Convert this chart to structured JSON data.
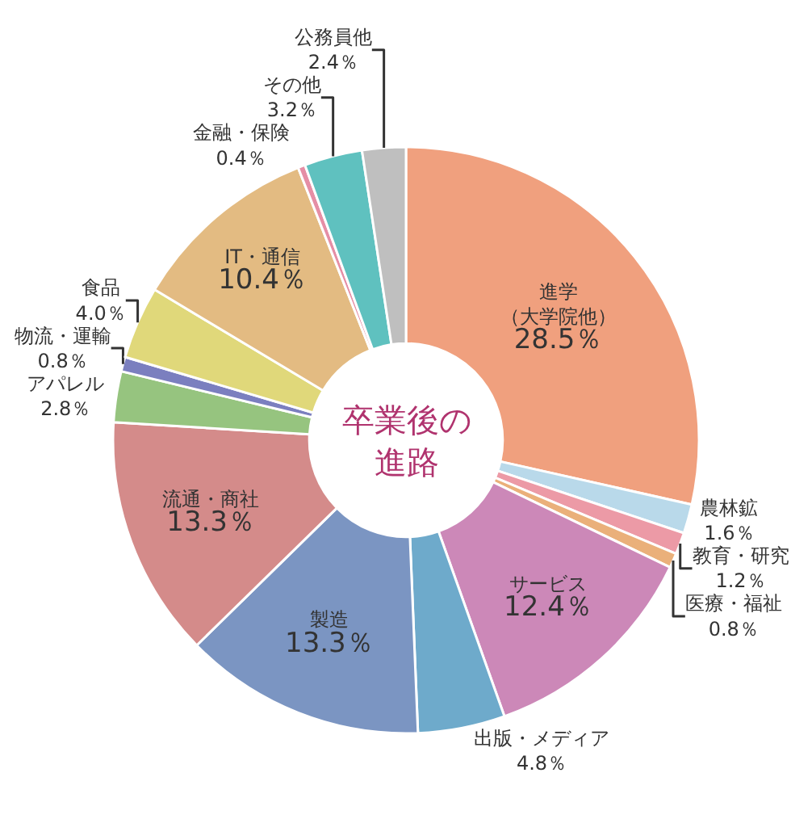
{
  "chart_data": {
    "type": "donut",
    "title": "卒業後の進路",
    "categories": [
      "進学（大学院他）",
      "農林鉱",
      "教育・研究",
      "医療・福祉",
      "サービス",
      "出版・メディア",
      "製造",
      "流通・商社",
      "アパレル",
      "物流・運輸",
      "食品",
      "IT・通信",
      "金融・保険",
      "その他",
      "公務員他"
    ],
    "values": [
      28.5,
      1.6,
      1.2,
      0.8,
      12.4,
      4.8,
      13.3,
      13.3,
      2.8,
      0.8,
      4.0,
      10.4,
      0.4,
      3.2,
      2.4
    ],
    "value_labels": [
      "28.5％",
      "1.6％",
      "1.2％",
      "0.8％",
      "12.4％",
      "4.8％",
      "13.3％",
      "13.3％",
      "2.8％",
      "0.8％",
      "4.0％",
      "10.4％",
      "0.4％",
      "3.2％",
      "2.4％"
    ],
    "colors": [
      "#f0a07e",
      "#b9d9ea",
      "#ec9aa6",
      "#eab07a",
      "#cc88b8",
      "#6eaacb",
      "#7b95c2",
      "#d48b8a",
      "#96c47f",
      "#7b7fbf",
      "#e0d87a",
      "#e3bb82",
      "#e58ea5",
      "#5fc1bf",
      "#bfbfbf"
    ],
    "legend": false
  }
}
